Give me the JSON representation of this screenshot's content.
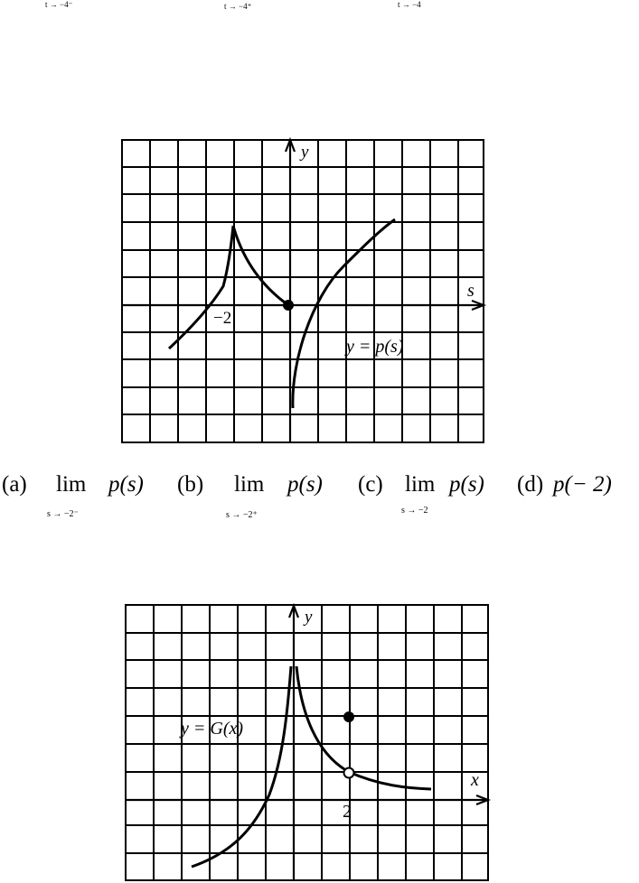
{
  "top_subscripts": [
    "t → −4⁻",
    "t → −4⁺",
    "t → −4"
  ],
  "graph_p": {
    "y_label": "y",
    "x_label": "s",
    "tick_label": "−2",
    "curve_label": "y = p(s)"
  },
  "questions": {
    "a_label": "(a)",
    "a_lim": "lim",
    "a_sub": "s → −2⁻",
    "a_expr": "p(s)",
    "b_label": "(b)",
    "b_lim": "lim",
    "b_sub": "s → −2⁺",
    "b_expr": "p(s)",
    "c_label": "(c)",
    "c_lim": "lim",
    "c_sub": "s → −2",
    "c_expr": "p(s)",
    "d_label": "(d)",
    "d_expr": "p(− 2)"
  },
  "graph_g": {
    "y_label": "y",
    "x_label": "x",
    "tick_label": "2",
    "curve_label": "y = G(x)"
  }
}
